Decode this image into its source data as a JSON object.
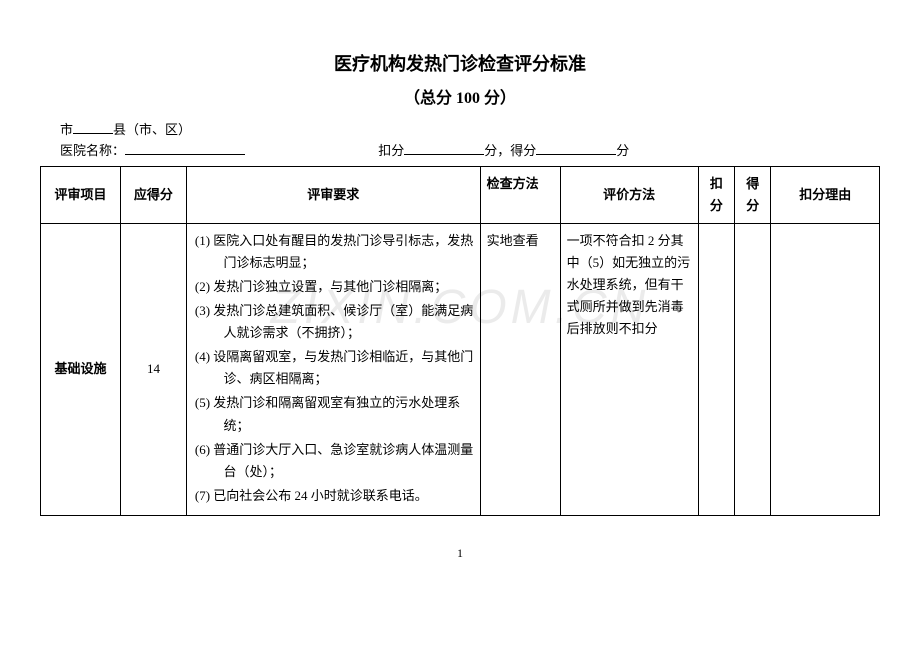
{
  "title": "医疗机构发热门诊检查评分标准",
  "subtitle": "（总分 100 分）",
  "header": {
    "line1_prefix": "市",
    "line1_suffix": "县（市、区）",
    "line2_label": "医院名称：",
    "line2_deduct_label": "扣分",
    "line2_score_label": "分，得分",
    "line2_unit": "分"
  },
  "columns": {
    "c1": "评审项目",
    "c2": "应得分",
    "c3": "评审要求",
    "c4": "检查方法",
    "c5": "评价方法",
    "c6": "扣分",
    "c7": "得分",
    "c8": "扣分理由"
  },
  "row": {
    "item": "基础设施",
    "score": "14",
    "reqs": [
      "医院入口处有醒目的发热门诊导引标志，发热门诊标志明显；",
      "发热门诊独立设置，与其他门诊相隔离；",
      "发热门诊总建筑面积、候诊厅（室）能满足病人就诊需求（不拥挤）；",
      "设隔离留观室，与发热门诊相临近，与其他门诊、病区相隔离；",
      "发热门诊和隔离留观室有独立的污水处理系统；",
      "普通门诊大厅入口、急诊室就诊病人体温测量台（处）；",
      "已向社会公布 24 小时就诊联系电话。"
    ],
    "method": "实地查看",
    "eval": "一项不符合扣 2 分其中（5）如无独立的污水处理系统，但有干式厕所并做到先消毒后排放则不扣分"
  },
  "watermark": "ZIXIN.COM.CN",
  "page_number": "1"
}
